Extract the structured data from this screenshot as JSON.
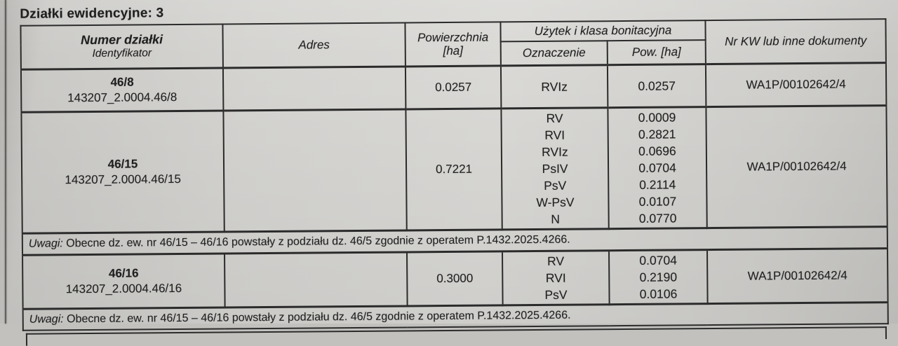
{
  "title": "Działki ewidencyjne: 3",
  "colors": {
    "paper": "#d5d4d1",
    "ink": "#1f1f1f",
    "border": "#2b2b2b"
  },
  "table": {
    "headers": {
      "numer": "Numer działki",
      "numer_sub": "Identyfikator",
      "adres": "Adres",
      "powierzchnia_line1": "Powierzchnia",
      "powierzchnia_line2": "[ha]",
      "uzytek_group": "Użytek i klasa bonitacyjna",
      "oznaczenie": "Oznaczenie",
      "pow_ha": "Pow. [ha]",
      "kw": "Nr KW lub inne dokumenty"
    },
    "rows": [
      {
        "numer": "46/8",
        "identyfikator": "143207_2.0004.46/8",
        "adres": "",
        "powierzchnia": "0.0257",
        "klasy": [
          {
            "oznaczenie": "RVIz",
            "pow": "0.0257"
          }
        ],
        "kw": "WA1P/00102642/4",
        "uwagi": null,
        "row_class": "row-46-8"
      },
      {
        "numer": "46/15",
        "identyfikator": "143207_2.0004.46/15",
        "adres": "",
        "powierzchnia": "0.7221",
        "klasy": [
          {
            "oznaczenie": "RV",
            "pow": "0.0009"
          },
          {
            "oznaczenie": "RVI",
            "pow": "0.2821"
          },
          {
            "oznaczenie": "RVIz",
            "pow": "0.0696"
          },
          {
            "oznaczenie": "PsIV",
            "pow": "0.0704"
          },
          {
            "oznaczenie": "PsV",
            "pow": "0.2114"
          },
          {
            "oznaczenie": "W-PsV",
            "pow": "0.0107"
          },
          {
            "oznaczenie": "N",
            "pow": "0.0770"
          }
        ],
        "kw": "WA1P/00102642/4",
        "uwagi": {
          "label": "Uwagi:",
          "text": "Obecne dz. ew. nr 46/15 – 46/16 powstały z podziału dz. 46/5 zgodnie z operatem P.1432.2025.4266."
        },
        "row_class": "row-46-15"
      },
      {
        "numer": "46/16",
        "identyfikator": "143207_2.0004.46/16",
        "adres": "",
        "powierzchnia": "0.3000",
        "klasy": [
          {
            "oznaczenie": "RV",
            "pow": "0.0704"
          },
          {
            "oznaczenie": "RVI",
            "pow": "0.2190"
          },
          {
            "oznaczenie": "PsV",
            "pow": "0.0106"
          }
        ],
        "kw": "WA1P/00102642/4",
        "uwagi": {
          "label": "Uwagi:",
          "text": "Obecne dz. ew. nr 46/15 – 46/16 powstały z podziału dz. 46/5 zgodnie z operatem P.1432.2025.4266."
        },
        "row_class": "row-46-16"
      }
    ]
  }
}
